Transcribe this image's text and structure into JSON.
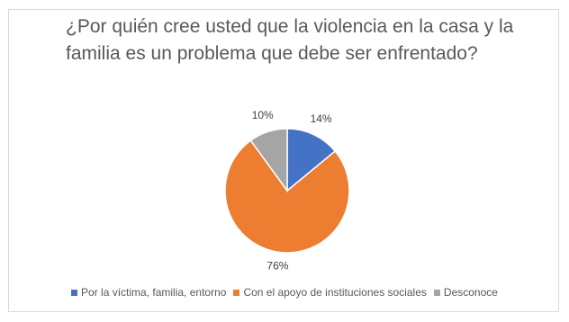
{
  "chart_data": {
    "type": "pie",
    "title": "¿Por quién cree usted que la violencia en la casa y la familia es un problema que debe ser enfrentado?",
    "categories": [
      "Por la víctima, familia, entorno",
      "Con el apoyo de instituciones sociales",
      "Desconoce"
    ],
    "values": [
      14,
      76,
      10
    ],
    "data_labels": [
      "14%",
      "76%",
      "10%"
    ],
    "colors": [
      "#4472C4",
      "#ED7D31",
      "#A5A5A5"
    ],
    "start_angle_deg": 0,
    "direction": "clockwise",
    "legend": "bottom"
  }
}
